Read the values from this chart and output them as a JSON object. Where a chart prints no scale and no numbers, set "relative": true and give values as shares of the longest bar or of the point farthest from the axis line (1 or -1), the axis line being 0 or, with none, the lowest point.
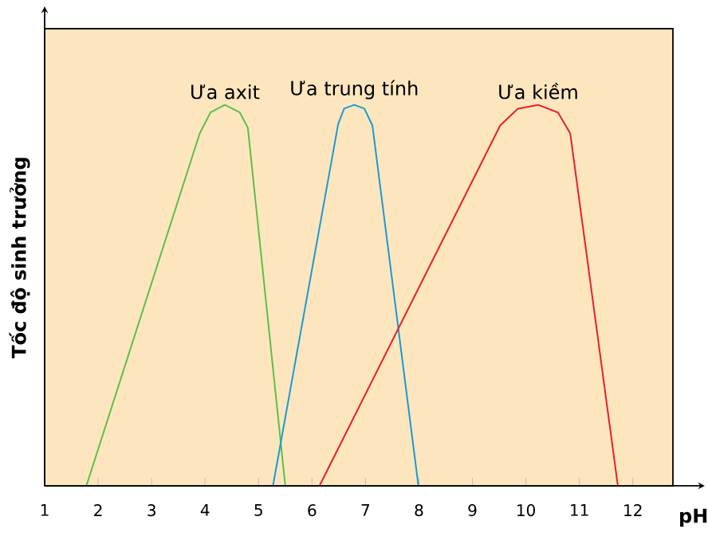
{
  "chart_data": {
    "type": "line",
    "relative": true,
    "xlabel": "pH",
    "ylabel": "Tốc độ sinh trưởng",
    "xlim": [
      1,
      12.75
    ],
    "xticks": [
      1,
      2,
      3,
      4,
      5,
      6,
      7,
      8,
      9,
      10,
      11,
      12
    ],
    "grid": false,
    "marker": "none",
    "series": [
      {
        "name": "Ưa axit",
        "color": "#5cbf4a",
        "x": [
          1.78,
          3.9,
          4.1,
          4.37,
          4.65,
          4.8,
          5.5
        ],
        "values": [
          0,
          0.925,
          0.98,
          1,
          0.98,
          0.94,
          0
        ]
      },
      {
        "name": "Ưa trung tính",
        "color": "#1a9ad6",
        "x": [
          5.27,
          6.49,
          6.6,
          6.79,
          6.98,
          7.13,
          7.99
        ],
        "values": [
          0,
          0.95,
          0.99,
          1,
          0.99,
          0.946,
          0
        ]
      },
      {
        "name": "Ưa kiềm",
        "color": "#e8202a",
        "x": [
          6.14,
          9.52,
          9.85,
          10.23,
          10.6,
          10.83,
          11.72
        ],
        "values": [
          0,
          0.946,
          0.99,
          1,
          0.98,
          0.925,
          0
        ]
      }
    ]
  }
}
